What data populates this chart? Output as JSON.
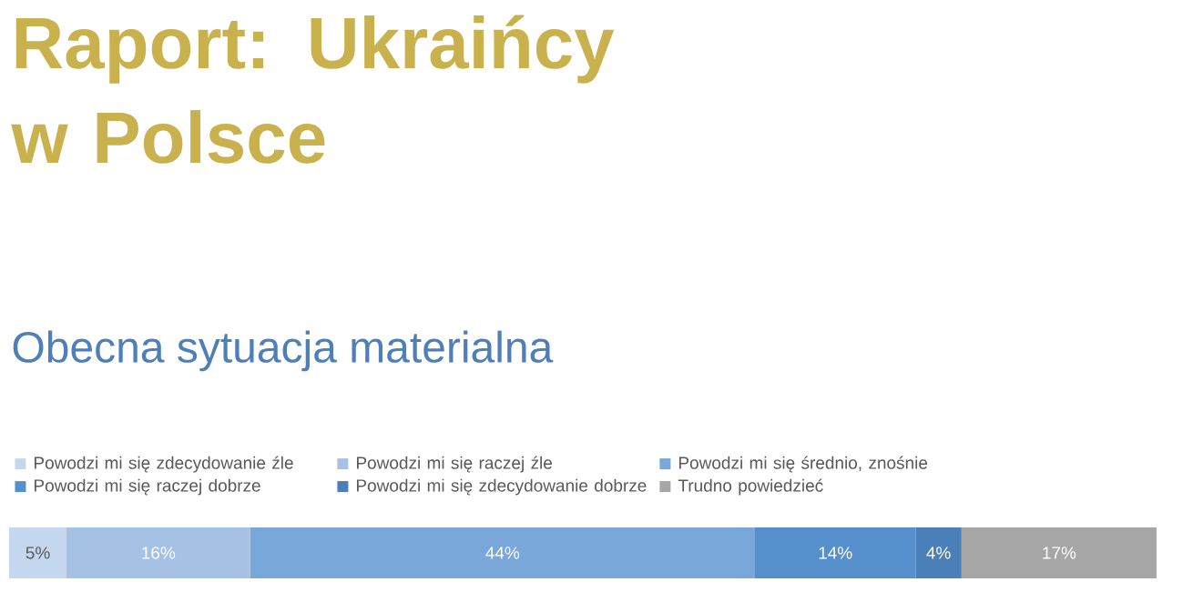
{
  "chart_data": {
    "type": "bar",
    "orientation": "horizontal",
    "stacked": true,
    "title": "Raport: Ukraińcy w Polsce",
    "subtitle": "Obecna sytuacja materialna",
    "categories": [
      null
    ],
    "legend": "top",
    "series": [
      {
        "name": "Powodzi mi się zdecydowanie źle",
        "color": "#c5d7ee",
        "values": [
          5
        ],
        "value_labels": [
          "5%"
        ]
      },
      {
        "name": "Powodzi mi się raczej źle",
        "color": "#a5c2e5",
        "values": [
          16
        ],
        "value_labels": [
          "16%"
        ]
      },
      {
        "name": "Powodzi mi się średnio, znośnie",
        "color": "#7aa7d9",
        "values": [
          44
        ],
        "value_labels": [
          "44%"
        ]
      },
      {
        "name": "Powodzi mi się raczej dobrze",
        "color": "#5690cc",
        "values": [
          14
        ],
        "value_labels": [
          "14%"
        ]
      },
      {
        "name": "Powodzi mi się zdecydowanie dobrze",
        "color": "#4a7fb8",
        "values": [
          4
        ],
        "value_labels": [
          "4%"
        ]
      },
      {
        "name": "Trudno powiedzieć",
        "color": "#a6a6a6",
        "values": [
          17
        ],
        "value_labels": [
          "17%"
        ]
      }
    ]
  }
}
